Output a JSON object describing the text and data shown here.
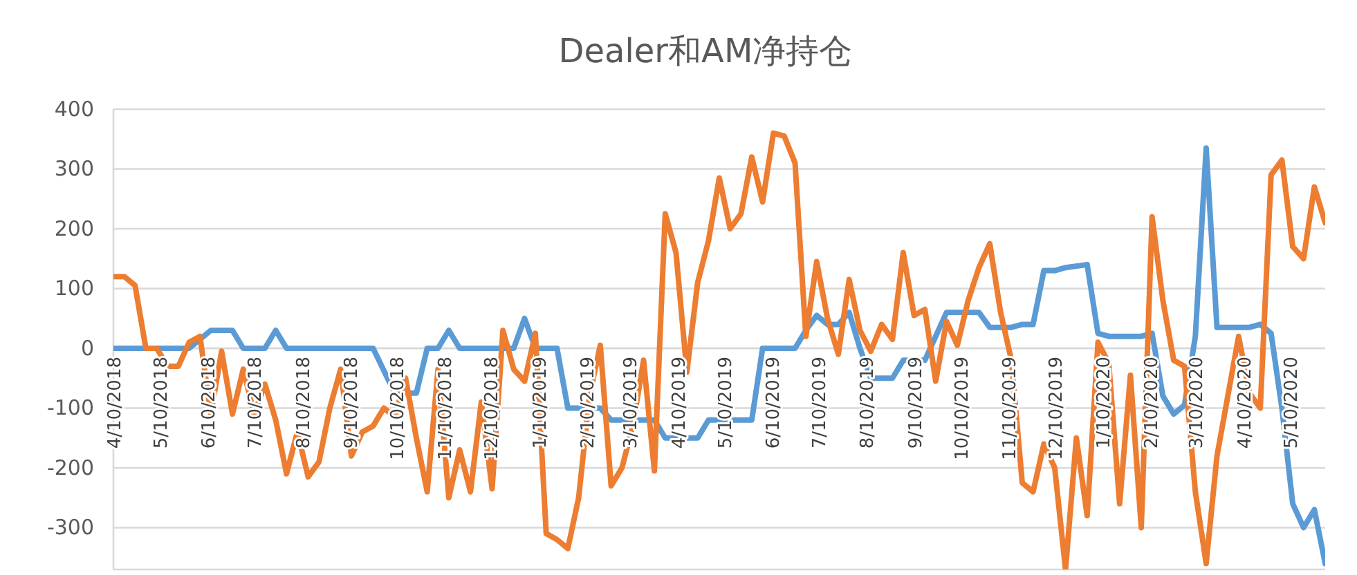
{
  "chart_data": {
    "type": "line",
    "title": "Dealer和AM净持仓",
    "grid": "y",
    "marker": "none",
    "line_style": "solid",
    "xlim": [
      "2018-04-10",
      "2020-06-02"
    ],
    "ylim": [
      -370,
      400
    ],
    "yticks": [
      -300,
      -200,
      -100,
      0,
      100,
      200,
      300,
      400
    ],
    "xticks": [
      {
        "value": "2018-04-10",
        "label": "4/10/2018"
      },
      {
        "value": "2018-05-10",
        "label": "5/10/2018"
      },
      {
        "value": "2018-06-10",
        "label": "6/10/2018"
      },
      {
        "value": "2018-07-10",
        "label": "7/10/2018"
      },
      {
        "value": "2018-08-10",
        "label": "8/10/2018"
      },
      {
        "value": "2018-09-10",
        "label": "9/10/2018"
      },
      {
        "value": "2018-10-10",
        "label": "10/10/2018"
      },
      {
        "value": "2018-11-10",
        "label": "11/10/2018"
      },
      {
        "value": "2018-12-10",
        "label": "12/10/2018"
      },
      {
        "value": "2019-01-10",
        "label": "1/10/2019"
      },
      {
        "value": "2019-02-10",
        "label": "2/10/2019"
      },
      {
        "value": "2019-03-10",
        "label": "3/10/2019"
      },
      {
        "value": "2019-04-10",
        "label": "4/10/2019"
      },
      {
        "value": "2019-05-10",
        "label": "5/10/2019"
      },
      {
        "value": "2019-06-10",
        "label": "6/10/2019"
      },
      {
        "value": "2019-07-10",
        "label": "7/10/2019"
      },
      {
        "value": "2019-08-10",
        "label": "8/10/2019"
      },
      {
        "value": "2019-09-10",
        "label": "9/10/2019"
      },
      {
        "value": "2019-10-10",
        "label": "10/10/2019"
      },
      {
        "value": "2019-11-10",
        "label": "11/10/2019"
      },
      {
        "value": "2019-12-10",
        "label": "12/10/2019"
      },
      {
        "value": "2020-01-10",
        "label": "1/10/2020"
      },
      {
        "value": "2020-02-10",
        "label": "2/10/2020"
      },
      {
        "value": "2020-03-10",
        "label": "3/10/2020"
      },
      {
        "value": "2020-04-10",
        "label": "4/10/2020"
      },
      {
        "value": "2020-05-10",
        "label": "5/10/2020"
      }
    ],
    "series": [
      {
        "color": "#5b9bd5",
        "x": [
          "2018-04-10",
          "2018-05-29",
          "2018-06-12",
          "2018-06-26",
          "2018-07-03",
          "2018-07-17",
          "2018-07-24",
          "2018-07-31",
          "2018-09-25",
          "2018-10-09",
          "2018-10-23",
          "2018-10-30",
          "2018-11-06",
          "2018-11-13",
          "2018-11-20",
          "2018-12-25",
          "2019-01-01",
          "2019-01-08",
          "2019-01-22",
          "2019-01-29",
          "2019-02-19",
          "2019-02-26",
          "2019-03-26",
          "2019-04-02",
          "2019-04-23",
          "2019-04-30",
          "2019-05-28",
          "2019-06-04",
          "2019-06-25",
          "2019-07-02",
          "2019-07-09",
          "2019-07-16",
          "2019-07-23",
          "2019-07-30",
          "2019-08-06",
          "2019-08-13",
          "2019-08-27",
          "2019-09-03",
          "2019-09-17",
          "2019-09-24",
          "2019-10-01",
          "2019-10-22",
          "2019-10-29",
          "2019-11-12",
          "2019-11-19",
          "2019-11-26",
          "2019-12-03",
          "2019-12-10",
          "2019-12-17",
          "2019-12-31",
          "2020-01-07",
          "2020-01-14",
          "2020-02-04",
          "2020-02-11",
          "2020-02-18",
          "2020-02-25",
          "2020-03-03",
          "2020-03-10",
          "2020-03-17",
          "2020-03-24",
          "2020-04-14",
          "2020-04-21",
          "2020-04-28",
          "2020-05-05",
          "2020-05-12",
          "2020-05-19",
          "2020-05-26",
          "2020-06-02"
        ],
        "values": [
          0,
          0,
          30,
          30,
          0,
          0,
          30,
          0,
          0,
          -75,
          -75,
          0,
          0,
          30,
          0,
          0,
          50,
          0,
          0,
          -100,
          -100,
          -120,
          -120,
          -150,
          -150,
          -120,
          -120,
          0,
          0,
          30,
          55,
          40,
          40,
          60,
          0,
          -50,
          -50,
          -20,
          -20,
          20,
          60,
          60,
          35,
          35,
          40,
          40,
          130,
          130,
          135,
          140,
          25,
          20,
          20,
          25,
          -80,
          -110,
          -95,
          20,
          335,
          35,
          35,
          40,
          25,
          -100,
          -260,
          -300,
          -270,
          -360
        ]
      },
      {
        "color": "#ed7d31",
        "x": [
          "2018-04-10",
          "2018-04-17",
          "2018-04-24",
          "2018-05-01",
          "2018-05-08",
          "2018-05-15",
          "2018-05-22",
          "2018-05-29",
          "2018-06-05",
          "2018-06-12",
          "2018-06-19",
          "2018-06-26",
          "2018-07-03",
          "2018-07-10",
          "2018-07-17",
          "2018-07-24",
          "2018-07-31",
          "2018-08-07",
          "2018-08-14",
          "2018-08-21",
          "2018-08-28",
          "2018-09-04",
          "2018-09-11",
          "2018-09-18",
          "2018-09-25",
          "2018-10-02",
          "2018-10-09",
          "2018-10-16",
          "2018-10-23",
          "2018-10-30",
          "2018-11-06",
          "2018-11-13",
          "2018-11-20",
          "2018-11-27",
          "2018-12-04",
          "2018-12-11",
          "2018-12-18",
          "2018-12-25",
          "2019-01-01",
          "2019-01-08",
          "2019-01-15",
          "2019-01-22",
          "2019-01-29",
          "2019-02-05",
          "2019-02-12",
          "2019-02-19",
          "2019-02-26",
          "2019-03-05",
          "2019-03-12",
          "2019-03-19",
          "2019-03-26",
          "2019-04-02",
          "2019-04-09",
          "2019-04-16",
          "2019-04-23",
          "2019-04-30",
          "2019-05-07",
          "2019-05-14",
          "2019-05-21",
          "2019-05-28",
          "2019-06-04",
          "2019-06-11",
          "2019-06-18",
          "2019-06-25",
          "2019-07-02",
          "2019-07-09",
          "2019-07-16",
          "2019-07-23",
          "2019-07-30",
          "2019-08-06",
          "2019-08-13",
          "2019-08-20",
          "2019-08-27",
          "2019-09-03",
          "2019-09-10",
          "2019-09-17",
          "2019-09-24",
          "2019-10-01",
          "2019-10-08",
          "2019-10-15",
          "2019-10-22",
          "2019-10-29",
          "2019-11-05",
          "2019-11-12",
          "2019-11-19",
          "2019-11-26",
          "2019-12-03",
          "2019-12-10",
          "2019-12-17",
          "2019-12-24",
          "2019-12-31",
          "2020-01-07",
          "2020-01-14",
          "2020-01-21",
          "2020-01-28",
          "2020-02-04",
          "2020-02-11",
          "2020-02-18",
          "2020-02-25",
          "2020-03-03",
          "2020-03-10",
          "2020-03-17",
          "2020-03-24",
          "2020-03-31",
          "2020-04-07",
          "2020-04-14",
          "2020-04-21",
          "2020-04-28",
          "2020-05-05",
          "2020-05-12",
          "2020-05-19",
          "2020-05-26",
          "2020-06-02"
        ],
        "values": [
          120,
          120,
          105,
          0,
          0,
          -30,
          -30,
          10,
          20,
          -110,
          -5,
          -110,
          -35,
          -110,
          -60,
          -120,
          -210,
          -140,
          -215,
          -190,
          -100,
          -35,
          -180,
          -140,
          -130,
          -100,
          -115,
          -50,
          -150,
          -240,
          -35,
          -250,
          -170,
          -240,
          -90,
          -235,
          30,
          -35,
          -55,
          25,
          -310,
          -320,
          -335,
          -250,
          -80,
          5,
          -230,
          -200,
          -130,
          -20,
          -205,
          225,
          160,
          -40,
          110,
          180,
          285,
          200,
          225,
          320,
          245,
          360,
          355,
          310,
          20,
          145,
          50,
          -10,
          115,
          30,
          -5,
          40,
          15,
          160,
          55,
          65,
          -55,
          45,
          5,
          80,
          135,
          175,
          60,
          -20,
          -225,
          -240,
          -160,
          -200,
          -370,
          -150,
          -280,
          10,
          -25,
          -260,
          -45,
          -300,
          220,
          80,
          -20,
          -30,
          -240,
          -360,
          -180,
          -80,
          20,
          -75,
          -100,
          290,
          315,
          170,
          150,
          270,
          210
        ]
      }
    ]
  }
}
